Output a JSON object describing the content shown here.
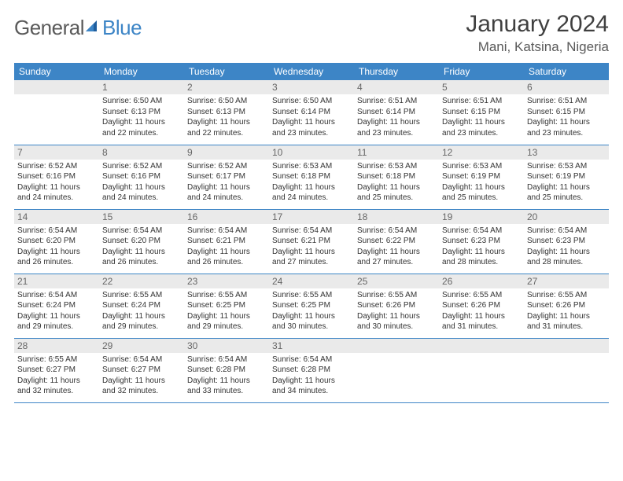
{
  "logo": {
    "word1": "General",
    "word2": "Blue"
  },
  "title": "January 2024",
  "location": "Mani, Katsina, Nigeria",
  "colors": {
    "header_bg": "#3d85c6",
    "header_text": "#ffffff",
    "daynum_bg": "#eaeaea",
    "daynum_text": "#666666",
    "cell_text": "#333333",
    "logo_gray": "#5a5a5a",
    "logo_blue": "#3d85c6",
    "row_border": "#3d85c6"
  },
  "weekdays": [
    "Sunday",
    "Monday",
    "Tuesday",
    "Wednesday",
    "Thursday",
    "Friday",
    "Saturday"
  ],
  "weeks": [
    [
      null,
      {
        "d": "1",
        "sr": "Sunrise: 6:50 AM",
        "ss": "Sunset: 6:13 PM",
        "dl1": "Daylight: 11 hours",
        "dl2": "and 22 minutes."
      },
      {
        "d": "2",
        "sr": "Sunrise: 6:50 AM",
        "ss": "Sunset: 6:13 PM",
        "dl1": "Daylight: 11 hours",
        "dl2": "and 22 minutes."
      },
      {
        "d": "3",
        "sr": "Sunrise: 6:50 AM",
        "ss": "Sunset: 6:14 PM",
        "dl1": "Daylight: 11 hours",
        "dl2": "and 23 minutes."
      },
      {
        "d": "4",
        "sr": "Sunrise: 6:51 AM",
        "ss": "Sunset: 6:14 PM",
        "dl1": "Daylight: 11 hours",
        "dl2": "and 23 minutes."
      },
      {
        "d": "5",
        "sr": "Sunrise: 6:51 AM",
        "ss": "Sunset: 6:15 PM",
        "dl1": "Daylight: 11 hours",
        "dl2": "and 23 minutes."
      },
      {
        "d": "6",
        "sr": "Sunrise: 6:51 AM",
        "ss": "Sunset: 6:15 PM",
        "dl1": "Daylight: 11 hours",
        "dl2": "and 23 minutes."
      }
    ],
    [
      {
        "d": "7",
        "sr": "Sunrise: 6:52 AM",
        "ss": "Sunset: 6:16 PM",
        "dl1": "Daylight: 11 hours",
        "dl2": "and 24 minutes."
      },
      {
        "d": "8",
        "sr": "Sunrise: 6:52 AM",
        "ss": "Sunset: 6:16 PM",
        "dl1": "Daylight: 11 hours",
        "dl2": "and 24 minutes."
      },
      {
        "d": "9",
        "sr": "Sunrise: 6:52 AM",
        "ss": "Sunset: 6:17 PM",
        "dl1": "Daylight: 11 hours",
        "dl2": "and 24 minutes."
      },
      {
        "d": "10",
        "sr": "Sunrise: 6:53 AM",
        "ss": "Sunset: 6:18 PM",
        "dl1": "Daylight: 11 hours",
        "dl2": "and 24 minutes."
      },
      {
        "d": "11",
        "sr": "Sunrise: 6:53 AM",
        "ss": "Sunset: 6:18 PM",
        "dl1": "Daylight: 11 hours",
        "dl2": "and 25 minutes."
      },
      {
        "d": "12",
        "sr": "Sunrise: 6:53 AM",
        "ss": "Sunset: 6:19 PM",
        "dl1": "Daylight: 11 hours",
        "dl2": "and 25 minutes."
      },
      {
        "d": "13",
        "sr": "Sunrise: 6:53 AM",
        "ss": "Sunset: 6:19 PM",
        "dl1": "Daylight: 11 hours",
        "dl2": "and 25 minutes."
      }
    ],
    [
      {
        "d": "14",
        "sr": "Sunrise: 6:54 AM",
        "ss": "Sunset: 6:20 PM",
        "dl1": "Daylight: 11 hours",
        "dl2": "and 26 minutes."
      },
      {
        "d": "15",
        "sr": "Sunrise: 6:54 AM",
        "ss": "Sunset: 6:20 PM",
        "dl1": "Daylight: 11 hours",
        "dl2": "and 26 minutes."
      },
      {
        "d": "16",
        "sr": "Sunrise: 6:54 AM",
        "ss": "Sunset: 6:21 PM",
        "dl1": "Daylight: 11 hours",
        "dl2": "and 26 minutes."
      },
      {
        "d": "17",
        "sr": "Sunrise: 6:54 AM",
        "ss": "Sunset: 6:21 PM",
        "dl1": "Daylight: 11 hours",
        "dl2": "and 27 minutes."
      },
      {
        "d": "18",
        "sr": "Sunrise: 6:54 AM",
        "ss": "Sunset: 6:22 PM",
        "dl1": "Daylight: 11 hours",
        "dl2": "and 27 minutes."
      },
      {
        "d": "19",
        "sr": "Sunrise: 6:54 AM",
        "ss": "Sunset: 6:23 PM",
        "dl1": "Daylight: 11 hours",
        "dl2": "and 28 minutes."
      },
      {
        "d": "20",
        "sr": "Sunrise: 6:54 AM",
        "ss": "Sunset: 6:23 PM",
        "dl1": "Daylight: 11 hours",
        "dl2": "and 28 minutes."
      }
    ],
    [
      {
        "d": "21",
        "sr": "Sunrise: 6:54 AM",
        "ss": "Sunset: 6:24 PM",
        "dl1": "Daylight: 11 hours",
        "dl2": "and 29 minutes."
      },
      {
        "d": "22",
        "sr": "Sunrise: 6:55 AM",
        "ss": "Sunset: 6:24 PM",
        "dl1": "Daylight: 11 hours",
        "dl2": "and 29 minutes."
      },
      {
        "d": "23",
        "sr": "Sunrise: 6:55 AM",
        "ss": "Sunset: 6:25 PM",
        "dl1": "Daylight: 11 hours",
        "dl2": "and 29 minutes."
      },
      {
        "d": "24",
        "sr": "Sunrise: 6:55 AM",
        "ss": "Sunset: 6:25 PM",
        "dl1": "Daylight: 11 hours",
        "dl2": "and 30 minutes."
      },
      {
        "d": "25",
        "sr": "Sunrise: 6:55 AM",
        "ss": "Sunset: 6:26 PM",
        "dl1": "Daylight: 11 hours",
        "dl2": "and 30 minutes."
      },
      {
        "d": "26",
        "sr": "Sunrise: 6:55 AM",
        "ss": "Sunset: 6:26 PM",
        "dl1": "Daylight: 11 hours",
        "dl2": "and 31 minutes."
      },
      {
        "d": "27",
        "sr": "Sunrise: 6:55 AM",
        "ss": "Sunset: 6:26 PM",
        "dl1": "Daylight: 11 hours",
        "dl2": "and 31 minutes."
      }
    ],
    [
      {
        "d": "28",
        "sr": "Sunrise: 6:55 AM",
        "ss": "Sunset: 6:27 PM",
        "dl1": "Daylight: 11 hours",
        "dl2": "and 32 minutes."
      },
      {
        "d": "29",
        "sr": "Sunrise: 6:54 AM",
        "ss": "Sunset: 6:27 PM",
        "dl1": "Daylight: 11 hours",
        "dl2": "and 32 minutes."
      },
      {
        "d": "30",
        "sr": "Sunrise: 6:54 AM",
        "ss": "Sunset: 6:28 PM",
        "dl1": "Daylight: 11 hours",
        "dl2": "and 33 minutes."
      },
      {
        "d": "31",
        "sr": "Sunrise: 6:54 AM",
        "ss": "Sunset: 6:28 PM",
        "dl1": "Daylight: 11 hours",
        "dl2": "and 34 minutes."
      },
      null,
      null,
      null
    ]
  ]
}
